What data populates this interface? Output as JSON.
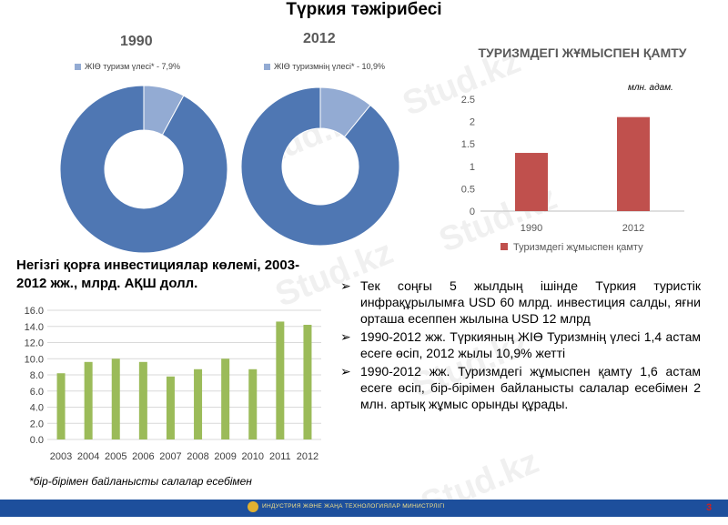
{
  "title": "Түркия тәжірибесі",
  "donuts": [
    {
      "year": "1990",
      "legend": "ЖІӨ туризм үлесі* - 7,9%",
      "share": 7.9
    },
    {
      "year": "2012",
      "legend": "ЖІӨ туризмнің үлесі* - 10,9%",
      "share": 10.9
    }
  ],
  "colors": {
    "donut_main": "#4f77b3",
    "donut_share": "#93abd3",
    "employment_bar": "#c0504d",
    "investment_bar": "#9bbb59",
    "footer": "#1d4f9c",
    "accent_red": "#d02020"
  },
  "employment_unit": "млн. адам.",
  "investment_title": "Негізгі қорға инвестициялар көлемі, 2003-2012 жж., млрд. АҚШ долл.",
  "bullets": [
    "Тек соңғы 5 жылдың ішінде Түркия туристік инфрақұрылымға USD 60 млрд. инвестиция салды, яғни орташа есеппен жылына USD 12 млрд",
    "1990-2012 жж. Түркияның ЖІӨ Туризмнің үлесі 1,4 астам есеге өсіп, 2012 жылы 10,9% жетті",
    "1990-2012 жж. Туризмдегі жұмыспен қамту 1,6 астам есеге өсіп, бір-бірімен байланысты салалар есебімен 2 млн. артық жұмыс орынды құрады."
  ],
  "bullet_marker": "➢",
  "footnote": "*бір-бірімен байланысты салалар есебімен",
  "footer_text": "ИНДУСТРИЯ ЖӘНЕ ЖАҢА ТЕХНОЛОГИЯЛАР МИНИСТРЛІГІ",
  "page_number": "3",
  "watermark": "Stud.kz",
  "chart_data": [
    {
      "type": "bar",
      "title": "ТУРИЗМДЕГІ ЖҰМЫСПЕН ҚАМТУ",
      "categories": [
        "1990",
        "2012"
      ],
      "series": [
        {
          "name": "Туризмдегі жұмыспен қамту",
          "values": [
            1.3,
            2.1
          ]
        }
      ],
      "ylim": [
        0,
        2.5
      ],
      "yticks": [
        "0",
        "0.5",
        "1",
        "1.5",
        "2",
        "2.5"
      ],
      "legend": "bottom",
      "grid": false
    },
    {
      "type": "bar",
      "categories": [
        "2003",
        "2004",
        "2005",
        "2006",
        "2007",
        "2008",
        "2009",
        "2010",
        "2011",
        "2012"
      ],
      "values": [
        8.2,
        9.6,
        10.0,
        9.6,
        7.8,
        8.7,
        10.0,
        8.7,
        14.6,
        14.2
      ],
      "ylim": [
        0,
        16
      ],
      "yticks": [
        "0.0",
        "2.0",
        "4.0",
        "6.0",
        "8.0",
        "10.0",
        "12.0",
        "14.0",
        "16.0"
      ],
      "grid": true
    }
  ]
}
